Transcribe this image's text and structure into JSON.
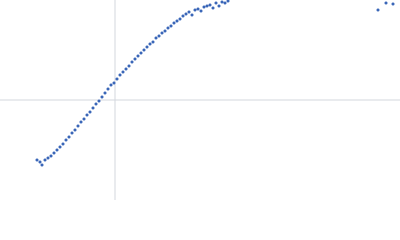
{
  "chart_data": {
    "type": "scatter",
    "color": "#3a66b8",
    "xlim": [
      -115,
      285
    ],
    "ylim": [
      -100,
      100
    ],
    "x": [
      -78,
      -75,
      -73,
      -70,
      -67,
      -64,
      -61,
      -58,
      -55,
      -52,
      -49,
      -46,
      -43,
      -40,
      -37,
      -34,
      -31,
      -28,
      -25,
      -22,
      -19,
      -16,
      -13,
      -10,
      -7,
      -4,
      -1,
      2,
      5,
      8,
      11,
      14,
      17,
      20,
      23,
      26,
      29,
      32,
      35,
      38,
      41,
      44,
      47,
      50,
      53,
      56,
      59,
      62,
      65,
      68,
      71,
      74,
      77,
      80,
      83,
      86,
      89,
      92,
      95,
      98,
      101,
      104,
      107,
      110,
      113,
      263,
      271,
      278
    ],
    "values": [
      -60,
      -62,
      -65,
      -60,
      -58,
      -56,
      -53,
      -50,
      -47,
      -44,
      -40,
      -37,
      -33,
      -30,
      -26,
      -22,
      -19,
      -15,
      -12,
      -8,
      -4,
      -1,
      3,
      7,
      11,
      15,
      17,
      21,
      25,
      28,
      31,
      34,
      38,
      41,
      44,
      47,
      50,
      53,
      56,
      58,
      62,
      64,
      67,
      69,
      72,
      74,
      77,
      79,
      81,
      84,
      86,
      88,
      85,
      90,
      91,
      89,
      93,
      94,
      95,
      92,
      97,
      94,
      98,
      97,
      99,
      90,
      97,
      96
    ]
  }
}
